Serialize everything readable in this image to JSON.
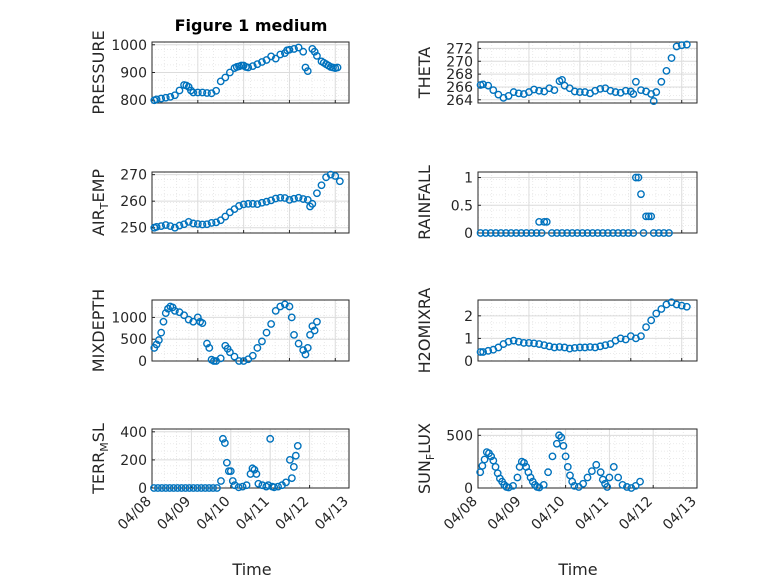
{
  "figure_title": "Figure 1 medium",
  "xlabel": "Time",
  "colors": {
    "marker": "#0072BD",
    "axis": "#262626",
    "grid": "#d9d9d9"
  },
  "x_tick_labels": [
    "04/08",
    "04/09",
    "04/10",
    "04/11",
    "04/12",
    "04/13"
  ],
  "chart_data": [
    {
      "type": "scatter",
      "ylabel": "PRESSURE",
      "ylim": [
        790,
        1010
      ],
      "yticks": [
        "800",
        "900",
        "1000"
      ],
      "ytick_values": [
        800,
        900,
        1000
      ],
      "xlim": [
        "04/08",
        "04/12"
      ],
      "grid": true,
      "x": [
        "04/08",
        "04/08",
        "04/08",
        "04/08",
        "04/08",
        "04/08",
        "04/08",
        "04/08",
        "04/08",
        "04/08",
        "04/08",
        "04/08",
        "04/09",
        "04/09",
        "04/09",
        "04/09",
        "04/09",
        "04/09",
        "04/09",
        "04/09",
        "04/09",
        "04/09",
        "04/09",
        "04/09",
        "04/10",
        "04/10",
        "04/10",
        "04/10",
        "04/10",
        "04/10",
        "04/10",
        "04/10",
        "04/10",
        "04/10",
        "04/10",
        "04/10",
        "04/11",
        "04/11",
        "04/11",
        "04/11",
        "04/11",
        "04/11",
        "04/11",
        "04/11",
        "04/11",
        "04/11",
        "04/11",
        "04/11",
        "04/11",
        "04/11",
        "04/12",
        "04/12",
        "04/12"
      ],
      "x_days": [
        0.05,
        0.1,
        0.2,
        0.3,
        0.4,
        0.5,
        0.6,
        0.7,
        0.75,
        0.8,
        0.85,
        0.9,
        1.0,
        1.1,
        1.2,
        1.3,
        1.4,
        1.5,
        1.6,
        1.7,
        1.8,
        1.85,
        1.9,
        1.95,
        2.0,
        2.05,
        2.1,
        2.2,
        2.3,
        2.4,
        2.5,
        2.6,
        2.7,
        2.8,
        2.9,
        2.95,
        3.0,
        3.1,
        3.2,
        3.3,
        3.35,
        3.4,
        3.5,
        3.55,
        3.6,
        3.7,
        3.75,
        3.8,
        3.85,
        3.9,
        3.95,
        4.0,
        4.05
      ],
      "y": [
        800,
        803,
        806,
        809,
        812,
        818,
        835,
        855,
        853,
        848,
        835,
        828,
        828,
        828,
        826,
        825,
        834,
        868,
        882,
        900,
        916,
        920,
        922,
        925,
        925,
        920,
        918,
        923,
        930,
        938,
        945,
        958,
        950,
        965,
        970,
        980,
        982,
        985,
        990,
        975,
        918,
        905,
        985,
        975,
        960,
        940,
        935,
        930,
        925,
        920,
        918,
        916,
        918
      ]
    },
    {
      "type": "scatter",
      "ylabel": "THETA",
      "ylim": [
        263.5,
        273
      ],
      "yticks": [
        "264",
        "266",
        "268",
        "270",
        "272"
      ],
      "ytick_values": [
        264,
        266,
        268,
        270,
        272
      ],
      "xlim": [
        "04/08",
        "04/12"
      ],
      "grid": true,
      "x_days": [
        0.05,
        0.1,
        0.2,
        0.3,
        0.4,
        0.5,
        0.6,
        0.7,
        0.8,
        0.9,
        1.0,
        1.1,
        1.2,
        1.3,
        1.4,
        1.5,
        1.6,
        1.65,
        1.7,
        1.8,
        1.9,
        2.0,
        2.1,
        2.2,
        2.3,
        2.4,
        2.5,
        2.6,
        2.7,
        2.8,
        2.9,
        3.0,
        3.05,
        3.1,
        3.2,
        3.3,
        3.4,
        3.45,
        3.5,
        3.6,
        3.7,
        3.8,
        3.9,
        4.0,
        4.1
      ],
      "y": [
        266.3,
        266.4,
        266.2,
        265.5,
        264.8,
        264.3,
        264.6,
        265.2,
        265.0,
        264.9,
        265.2,
        265.6,
        265.4,
        265.3,
        265.8,
        265.5,
        266.9,
        267.1,
        266.2,
        265.8,
        265.3,
        265.2,
        265.2,
        265.0,
        265.4,
        265.7,
        265.8,
        265.4,
        265.2,
        265.1,
        265.4,
        265.3,
        264.9,
        266.8,
        265.5,
        265.3,
        264.9,
        263.8,
        265.2,
        266.8,
        268.5,
        270.5,
        272.3,
        272.5,
        272.6
      ]
    },
    {
      "type": "scatter",
      "ylabel": "AIR_TEMP",
      "ylabel_main": "AIR",
      "ylabel_sub": "T",
      "ylabel_rest": "EMP",
      "ylim": [
        248,
        271
      ],
      "yticks": [
        "250",
        "260",
        "270"
      ],
      "ytick_values": [
        250,
        260,
        270
      ],
      "xlim": [
        "04/08",
        "04/12"
      ],
      "grid": true,
      "x_days": [
        0.05,
        0.1,
        0.2,
        0.3,
        0.4,
        0.5,
        0.6,
        0.7,
        0.8,
        0.9,
        1.0,
        1.1,
        1.2,
        1.3,
        1.4,
        1.5,
        1.6,
        1.7,
        1.8,
        1.9,
        2.0,
        2.1,
        2.2,
        2.3,
        2.4,
        2.5,
        2.6,
        2.7,
        2.8,
        2.9,
        3.0,
        3.1,
        3.2,
        3.3,
        3.4,
        3.45,
        3.5,
        3.6,
        3.7,
        3.8,
        3.9,
        4.0,
        4.1
      ],
      "y": [
        250,
        250.3,
        250.6,
        251,
        250.6,
        250,
        250.8,
        251.3,
        252.2,
        251.6,
        251.4,
        251.2,
        251.3,
        251.8,
        252.0,
        252.8,
        254.2,
        255.8,
        257.0,
        258.2,
        258.8,
        259.0,
        259.0,
        258.9,
        259.4,
        259.8,
        260.3,
        261.0,
        261.3,
        261.2,
        260.5,
        260.9,
        261.3,
        260.8,
        260.5,
        258.0,
        259.0,
        263.0,
        266.0,
        269.0,
        270.0,
        269.5,
        267.5
      ]
    },
    {
      "type": "scatter",
      "ylabel": "RAINFALL",
      "ylim": [
        0,
        1.1
      ],
      "yticks": [
        "0",
        "0.5",
        "1"
      ],
      "ytick_values": [
        0,
        0.5,
        1
      ],
      "xlim": [
        "04/08",
        "04/12"
      ],
      "grid": true,
      "x_days": [
        0.05,
        0.15,
        0.25,
        0.35,
        0.45,
        0.55,
        0.65,
        0.75,
        0.85,
        0.95,
        1.05,
        1.15,
        1.2,
        1.25,
        1.3,
        1.35,
        1.45,
        1.55,
        1.65,
        1.75,
        1.85,
        1.95,
        2.05,
        2.15,
        2.25,
        2.35,
        2.45,
        2.55,
        2.65,
        2.75,
        2.85,
        2.95,
        3.05,
        3.1,
        3.15,
        3.2,
        3.25,
        3.3,
        3.35,
        3.4,
        3.45,
        3.55,
        3.65,
        3.75
      ],
      "y": [
        0,
        0,
        0,
        0,
        0,
        0,
        0,
        0,
        0,
        0,
        0,
        0,
        0.2,
        0,
        0.2,
        0.2,
        0,
        0,
        0,
        0,
        0,
        0,
        0,
        0,
        0,
        0,
        0,
        0,
        0,
        0,
        0,
        0,
        0,
        1.0,
        1.0,
        0.7,
        0,
        0.3,
        0.3,
        0.3,
        0,
        0,
        0,
        0
      ]
    },
    {
      "type": "scatter",
      "ylabel": "MIXDEPTH",
      "ylim": [
        0,
        1400
      ],
      "yticks": [
        "0",
        "500",
        "1000"
      ],
      "ytick_values": [
        0,
        500,
        1000
      ],
      "xlim": [
        "04/08",
        "04/12"
      ],
      "grid": true,
      "x_days": [
        0.05,
        0.1,
        0.15,
        0.2,
        0.25,
        0.3,
        0.35,
        0.4,
        0.45,
        0.5,
        0.6,
        0.7,
        0.8,
        0.9,
        1.0,
        1.05,
        1.1,
        1.2,
        1.25,
        1.3,
        1.35,
        1.4,
        1.5,
        1.6,
        1.65,
        1.7,
        1.8,
        1.9,
        2.0,
        2.1,
        2.2,
        2.3,
        2.4,
        2.5,
        2.6,
        2.7,
        2.8,
        2.9,
        3.0,
        3.05,
        3.1,
        3.2,
        3.3,
        3.35,
        3.4,
        3.45,
        3.5,
        3.55,
        3.6
      ],
      "y": [
        300,
        380,
        480,
        650,
        900,
        1100,
        1200,
        1250,
        1230,
        1150,
        1120,
        1050,
        950,
        900,
        1000,
        900,
        870,
        400,
        300,
        30,
        0,
        0,
        60,
        350,
        280,
        200,
        100,
        0,
        0,
        40,
        120,
        300,
        450,
        650,
        850,
        1150,
        1250,
        1300,
        1250,
        1000,
        600,
        400,
        250,
        150,
        300,
        600,
        800,
        700,
        900
      ]
    },
    {
      "type": "scatter",
      "ylabel": "H2OMIXRA",
      "ylim": [
        0,
        2.7
      ],
      "yticks": [
        "0",
        "1",
        "2"
      ],
      "ytick_values": [
        0,
        1,
        2
      ],
      "xlim": [
        "04/08",
        "04/12"
      ],
      "grid": true,
      "x_days": [
        0.05,
        0.1,
        0.2,
        0.3,
        0.4,
        0.5,
        0.6,
        0.7,
        0.8,
        0.9,
        1.0,
        1.1,
        1.2,
        1.3,
        1.4,
        1.5,
        1.6,
        1.7,
        1.8,
        1.9,
        2.0,
        2.1,
        2.2,
        2.3,
        2.4,
        2.5,
        2.6,
        2.7,
        2.8,
        2.9,
        3.0,
        3.1,
        3.2,
        3.3,
        3.4,
        3.5,
        3.6,
        3.7,
        3.8,
        3.9,
        4.0,
        4.1
      ],
      "y": [
        0.4,
        0.4,
        0.45,
        0.5,
        0.6,
        0.75,
        0.85,
        0.9,
        0.85,
        0.8,
        0.8,
        0.78,
        0.75,
        0.7,
        0.65,
        0.6,
        0.62,
        0.6,
        0.55,
        0.58,
        0.6,
        0.6,
        0.62,
        0.6,
        0.65,
        0.7,
        0.75,
        0.9,
        1.0,
        0.95,
        1.1,
        1.0,
        1.1,
        1.5,
        1.8,
        2.1,
        2.3,
        2.5,
        2.6,
        2.5,
        2.45,
        2.4
      ]
    },
    {
      "type": "scatter",
      "ylabel": "TERR_MSL",
      "ylabel_main": "TERR",
      "ylabel_sub": "M",
      "ylabel_rest": "SL",
      "ylim": [
        0,
        420
      ],
      "yticks": [
        "0",
        "200",
        "400"
      ],
      "ytick_values": [
        0,
        200,
        400
      ],
      "xlim": [
        "04/08",
        "04/13"
      ],
      "grid": true,
      "x_days": [
        0.05,
        0.15,
        0.25,
        0.35,
        0.45,
        0.55,
        0.65,
        0.75,
        0.85,
        0.95,
        1.05,
        1.15,
        1.25,
        1.35,
        1.45,
        1.55,
        1.65,
        1.75,
        1.8,
        1.85,
        1.9,
        1.95,
        2.0,
        2.05,
        2.1,
        2.2,
        2.3,
        2.4,
        2.5,
        2.55,
        2.6,
        2.65,
        2.7,
        2.8,
        2.9,
        2.95,
        3.0,
        3.05,
        3.1,
        3.2,
        3.3,
        3.4,
        3.5,
        3.55,
        3.6,
        3.65,
        3.7
      ],
      "y": [
        0,
        0,
        0,
        0,
        0,
        0,
        0,
        0,
        0,
        0,
        0,
        0,
        0,
        0,
        0,
        0,
        0,
        50,
        350,
        320,
        180,
        120,
        120,
        50,
        20,
        5,
        10,
        20,
        100,
        140,
        130,
        100,
        30,
        20,
        10,
        20,
        350,
        10,
        5,
        10,
        20,
        40,
        200,
        70,
        150,
        230,
        300
      ]
    },
    {
      "type": "scatter",
      "ylabel": "SUN_FLUX",
      "ylabel_main": "SUN",
      "ylabel_sub": "F",
      "ylabel_rest": "LUX",
      "ylim": [
        0,
        560
      ],
      "yticks": [
        "0",
        "500"
      ],
      "ytick_values": [
        0,
        500
      ],
      "xlim": [
        "04/08",
        "04/13"
      ],
      "grid": true,
      "x_days": [
        0.05,
        0.1,
        0.15,
        0.2,
        0.25,
        0.3,
        0.35,
        0.4,
        0.45,
        0.5,
        0.55,
        0.6,
        0.65,
        0.7,
        0.8,
        0.9,
        0.95,
        1.0,
        1.05,
        1.1,
        1.15,
        1.2,
        1.25,
        1.3,
        1.35,
        1.4,
        1.5,
        1.6,
        1.7,
        1.8,
        1.85,
        1.9,
        1.95,
        2.0,
        2.05,
        2.1,
        2.15,
        2.2,
        2.3,
        2.4,
        2.5,
        2.6,
        2.7,
        2.8,
        2.85,
        2.9,
        2.95,
        3.0,
        3.1,
        3.2,
        3.3,
        3.4,
        3.5,
        3.6,
        3.7
      ],
      "y": [
        150,
        210,
        270,
        340,
        330,
        300,
        260,
        200,
        140,
        90,
        60,
        30,
        10,
        5,
        20,
        100,
        200,
        250,
        240,
        200,
        150,
        100,
        60,
        30,
        10,
        5,
        30,
        150,
        300,
        420,
        500,
        480,
        400,
        300,
        200,
        120,
        60,
        20,
        10,
        40,
        100,
        160,
        220,
        150,
        80,
        40,
        10,
        100,
        200,
        100,
        30,
        10,
        0,
        20,
        60
      ]
    }
  ]
}
